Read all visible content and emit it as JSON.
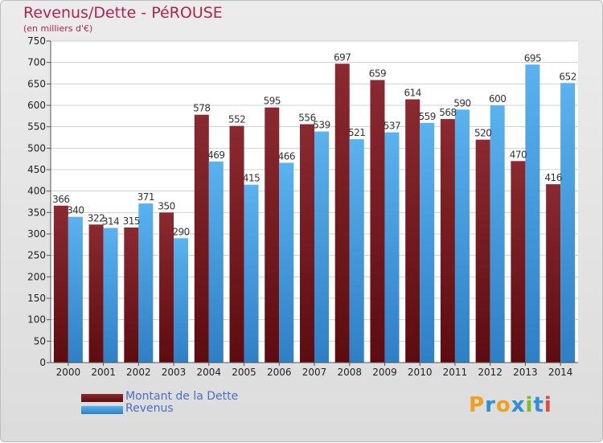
{
  "header": {
    "title": "Revenus/Dette - PéROUSE",
    "subtitle": "(en milliers d'€)"
  },
  "chart_data": {
    "type": "bar",
    "categories": [
      "2000",
      "2001",
      "2002",
      "2003",
      "2004",
      "2005",
      "2006",
      "2007",
      "2008",
      "2009",
      "2010",
      "2011",
      "2012",
      "2013",
      "2014"
    ],
    "series": [
      {
        "name": "Montant de la Dette",
        "color": "#7a1f24",
        "values": [
          366,
          322,
          315,
          350,
          578,
          552,
          595,
          556,
          697,
          659,
          614,
          568,
          520,
          470,
          416
        ]
      },
      {
        "name": "Revenus",
        "color": "#4aa3e3",
        "values": [
          340,
          314,
          371,
          290,
          469,
          415,
          466,
          539,
          521,
          537,
          559,
          590,
          600,
          695,
          652
        ]
      }
    ],
    "ylim": [
      0,
      750
    ],
    "yticks": [
      0,
      50,
      100,
      150,
      200,
      250,
      300,
      350,
      400,
      450,
      500,
      550,
      600,
      650,
      700,
      750
    ],
    "grid": true,
    "legend_position": "bottom-left"
  },
  "legend": {
    "items": [
      {
        "label": "Montant de la Dette",
        "color": "#6b1418"
      },
      {
        "label": "Revenus",
        "color": "#4aa3e3"
      }
    ]
  },
  "logo": {
    "letters": [
      "P",
      "r",
      "o",
      "x",
      "i",
      "t",
      "i"
    ],
    "colors": [
      "#f0a020",
      "#2f8fd8",
      "#f0a020",
      "#2f8fd8",
      "#7bbf2f",
      "#2f8fd8",
      "#e04b3a"
    ]
  }
}
